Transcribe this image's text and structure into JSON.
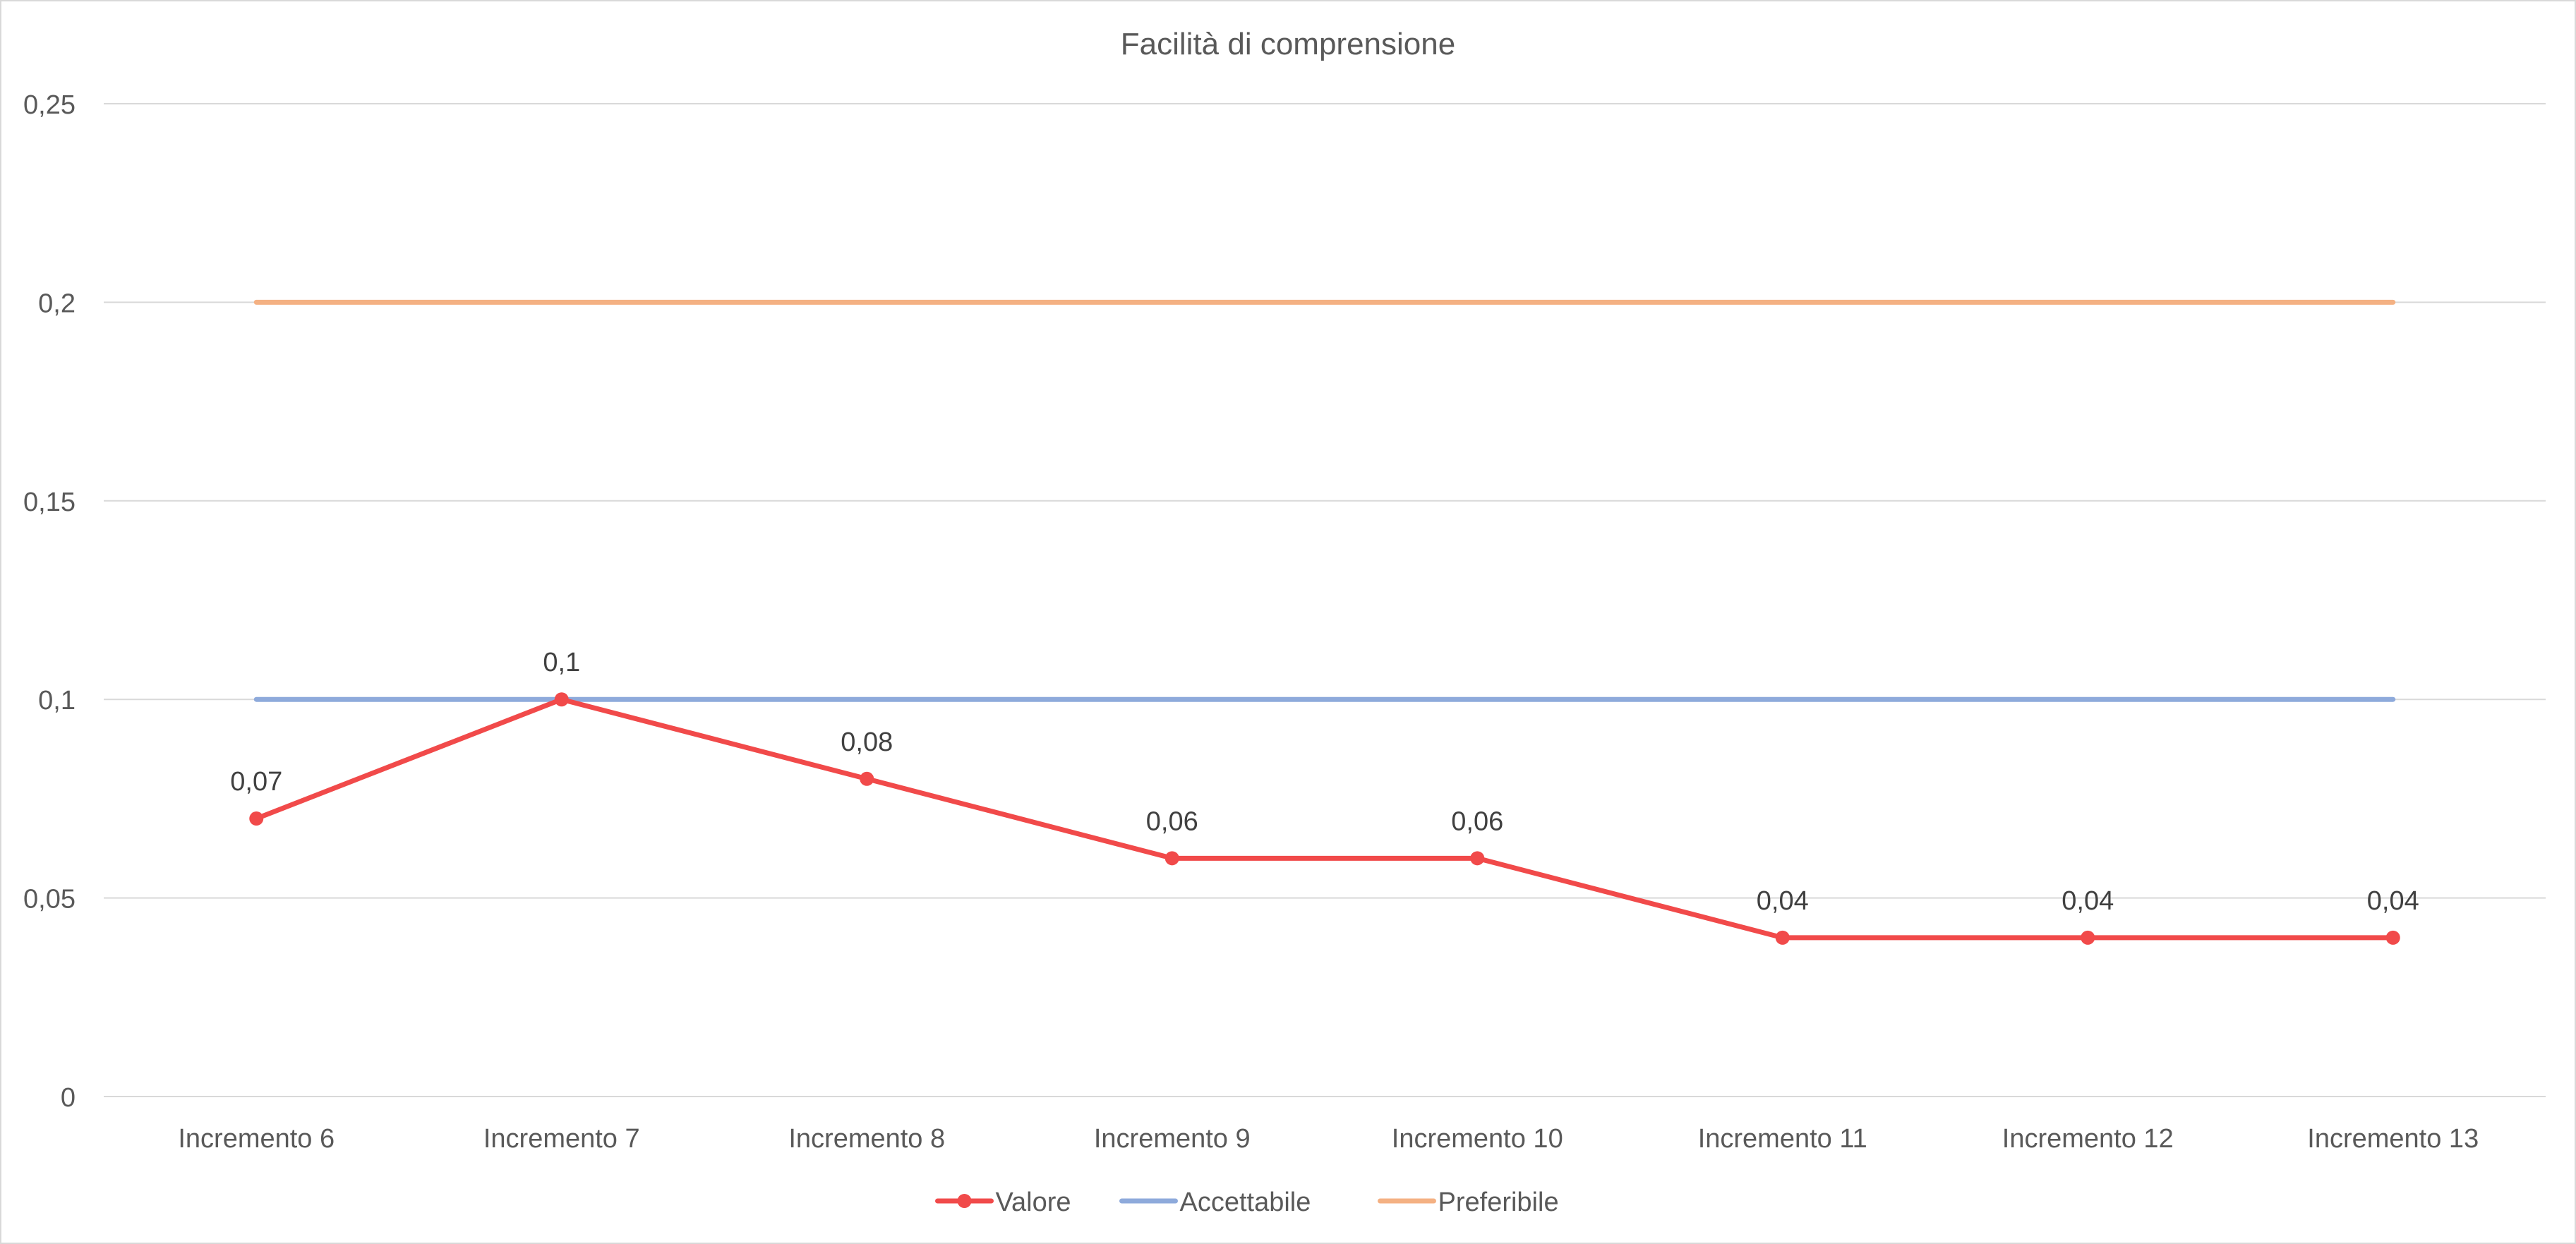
{
  "chart_data": {
    "type": "line",
    "title": "Facilità di comprensione",
    "categories": [
      "Incremento 6",
      "Incremento 7",
      "Incremento 8",
      "Incremento 9",
      "Incremento 10",
      "Incremento 11",
      "Incremento 12",
      "Incremento 13"
    ],
    "series": [
      {
        "name": "Valore",
        "color": "#f14a4a",
        "markers": true,
        "data_labels": [
          "0,07",
          "0,1",
          "0,08",
          "0,06",
          "0,06",
          "0,04",
          "0,04",
          "0,04"
        ],
        "values": [
          0.07,
          0.1,
          0.08,
          0.06,
          0.06,
          0.04,
          0.04,
          0.04
        ]
      },
      {
        "name": "Accettabile",
        "color": "#8eaadb",
        "markers": false,
        "values": [
          0.1,
          0.1,
          0.1,
          0.1,
          0.1,
          0.1,
          0.1,
          0.1
        ]
      },
      {
        "name": "Preferibile",
        "color": "#f4b183",
        "markers": false,
        "values": [
          0.2,
          0.2,
          0.2,
          0.2,
          0.2,
          0.2,
          0.2,
          0.2
        ]
      }
    ],
    "ylim": [
      0,
      0.25
    ],
    "yticks": [
      0,
      0.05,
      0.1,
      0.15,
      0.2,
      0.25
    ],
    "ytick_labels": [
      "0",
      "0,05",
      "0,1",
      "0,15",
      "0,2",
      "0,25"
    ],
    "grid": true,
    "legend_position": "bottom"
  }
}
